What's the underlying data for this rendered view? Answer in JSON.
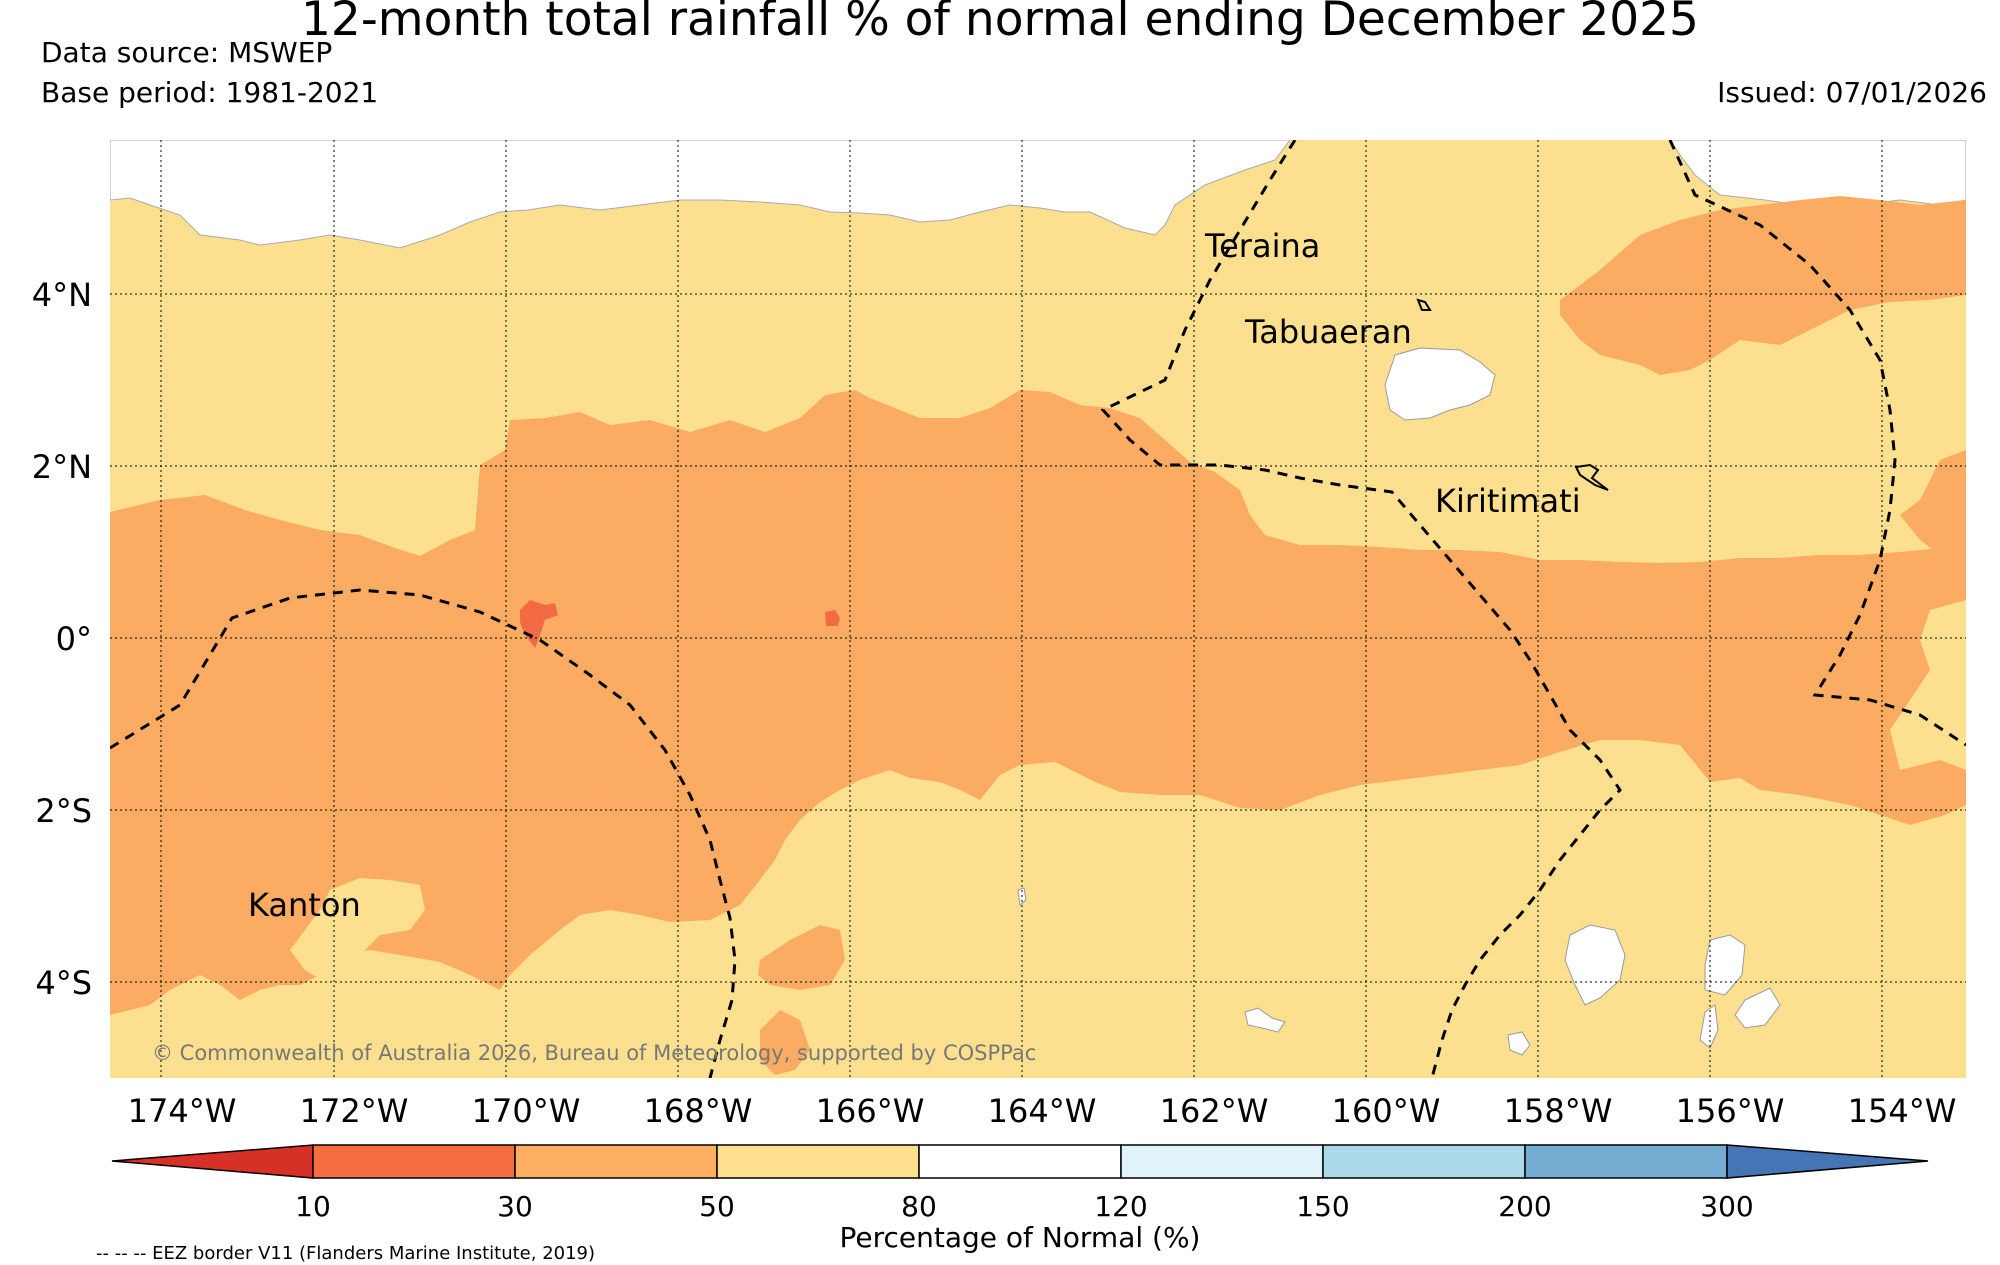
{
  "header": {
    "title": "12-month total rainfall % of normal ending December 2025",
    "data_source": "Data source: MSWEP",
    "base_period": "Base period: 1981-2021",
    "issued": "Issued: 07/01/2026"
  },
  "map": {
    "lat_labels": [
      "4°N",
      "2°N",
      "0°",
      "2°S",
      "4°S"
    ],
    "lon_labels": [
      "174°W",
      "172°W",
      "170°W",
      "168°W",
      "166°W",
      "164°W",
      "162°W",
      "160°W",
      "158°W",
      "156°W",
      "154°W"
    ],
    "places": [
      "Teraina",
      "Tabuaeran",
      "Kiritimati",
      "Kanton"
    ],
    "copyright": "© Commonwealth of Australia 2026, Bureau of Meteorology, supported by COSPPac",
    "colors": {
      "ocean_50_80": "#fde08f",
      "ocean_30_50": "#fbac62",
      "ocean_10_30": "#f26b45",
      "no_data": "#ffffff"
    }
  },
  "legend": {
    "title": "Percentage of Normal (%)",
    "tick_labels": [
      "10",
      "30",
      "50",
      "80",
      "120",
      "150",
      "200",
      "300"
    ],
    "colors": [
      "#d73027",
      "#f46d43",
      "#fdae61",
      "#fee090",
      "#ffffff",
      "#e0f3f8",
      "#abd9e9",
      "#74add1",
      "#4575b4"
    ],
    "footnote": "-- -- -- EEZ border V11 (Flanders Marine Institute, 2019)"
  }
}
